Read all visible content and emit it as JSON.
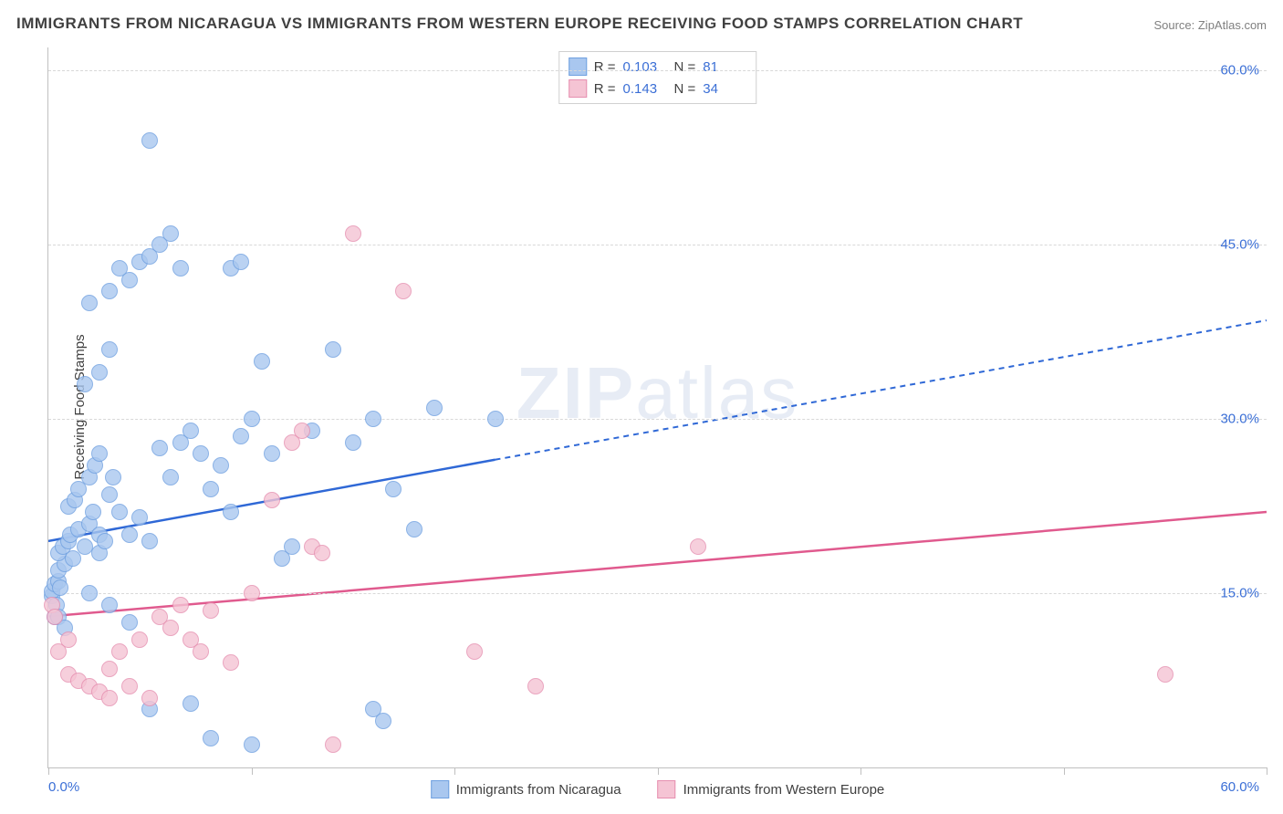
{
  "title": "IMMIGRANTS FROM NICARAGUA VS IMMIGRANTS FROM WESTERN EUROPE RECEIVING FOOD STAMPS CORRELATION CHART",
  "source": "Source: ZipAtlas.com",
  "watermark_bold": "ZIP",
  "watermark_rest": "atlas",
  "y_axis_label": "Receiving Food Stamps",
  "chart": {
    "type": "scatter",
    "xlim": [
      0,
      60
    ],
    "ylim": [
      0,
      62
    ],
    "x_min_label": "0.0%",
    "x_max_label": "60.0%",
    "y_tick_values": [
      15,
      30,
      45,
      60
    ],
    "y_tick_labels": [
      "15.0%",
      "30.0%",
      "45.0%",
      "60.0%"
    ],
    "x_tick_positions": [
      0,
      10,
      20,
      30,
      40,
      50,
      60
    ],
    "background_color": "#ffffff",
    "grid_color": "#d8d8d8",
    "marker_size": 16,
    "marker_opacity": 0.8,
    "series": [
      {
        "name": "Immigrants from Nicaragua",
        "fill": "#a9c7ef",
        "stroke": "#6fa0e0",
        "line_color": "#2f68d6",
        "R": "0.103",
        "N": "81",
        "trend": {
          "x1": 0,
          "y1": 19.5,
          "x2": 22,
          "y2": 26.5,
          "dash_x2": 60,
          "dash_y2": 38.5
        },
        "points": [
          [
            0.2,
            14.8
          ],
          [
            0.2,
            15.2
          ],
          [
            0.3,
            13.0
          ],
          [
            0.3,
            15.8
          ],
          [
            0.4,
            14.0
          ],
          [
            0.5,
            16.0
          ],
          [
            0.6,
            15.5
          ],
          [
            0.5,
            17.0
          ],
          [
            0.8,
            17.5
          ],
          [
            0.5,
            18.5
          ],
          [
            0.7,
            19.0
          ],
          [
            1.0,
            19.5
          ],
          [
            1.2,
            18.0
          ],
          [
            1.1,
            20.0
          ],
          [
            1.5,
            20.5
          ],
          [
            1.8,
            19.0
          ],
          [
            2.0,
            21.0
          ],
          [
            2.2,
            22.0
          ],
          [
            2.5,
            18.5
          ],
          [
            2.5,
            20.0
          ],
          [
            2.8,
            19.5
          ],
          [
            1.0,
            22.5
          ],
          [
            1.3,
            23.0
          ],
          [
            1.5,
            24.0
          ],
          [
            2.0,
            25.0
          ],
          [
            2.3,
            26.0
          ],
          [
            2.5,
            27.0
          ],
          [
            3.0,
            23.5
          ],
          [
            3.2,
            25.0
          ],
          [
            3.5,
            22.0
          ],
          [
            4.0,
            20.0
          ],
          [
            4.5,
            21.5
          ],
          [
            5.0,
            19.5
          ],
          [
            5.5,
            27.5
          ],
          [
            6.0,
            25.0
          ],
          [
            6.5,
            28.0
          ],
          [
            7.0,
            29.0
          ],
          [
            7.5,
            27.0
          ],
          [
            8.0,
            24.0
          ],
          [
            8.5,
            26.0
          ],
          [
            9.0,
            22.0
          ],
          [
            9.5,
            28.5
          ],
          [
            10.0,
            30.0
          ],
          [
            10.5,
            35.0
          ],
          [
            11.0,
            27.0
          ],
          [
            11.5,
            18.0
          ],
          [
            12.0,
            19.0
          ],
          [
            13.0,
            29.0
          ],
          [
            14.0,
            36.0
          ],
          [
            15.0,
            28.0
          ],
          [
            16.0,
            30.0
          ],
          [
            17.0,
            24.0
          ],
          [
            18.0,
            20.5
          ],
          [
            19.0,
            31.0
          ],
          [
            22.0,
            30.0
          ],
          [
            1.8,
            33.0
          ],
          [
            2.5,
            34.0
          ],
          [
            3.0,
            36.0
          ],
          [
            2.0,
            40.0
          ],
          [
            3.0,
            41.0
          ],
          [
            4.0,
            42.0
          ],
          [
            3.5,
            43.0
          ],
          [
            4.5,
            43.5
          ],
          [
            5.0,
            44.0
          ],
          [
            5.5,
            45.0
          ],
          [
            6.0,
            46.0
          ],
          [
            6.5,
            43.0
          ],
          [
            9.0,
            43.0
          ],
          [
            9.5,
            43.5
          ],
          [
            5.0,
            54.0
          ],
          [
            0.5,
            13.0
          ],
          [
            0.8,
            12.0
          ],
          [
            2.0,
            15.0
          ],
          [
            3.0,
            14.0
          ],
          [
            4.0,
            12.5
          ],
          [
            5.0,
            5.0
          ],
          [
            7.0,
            5.5
          ],
          [
            8.0,
            2.5
          ],
          [
            10.0,
            2.0
          ],
          [
            16.0,
            5.0
          ],
          [
            16.5,
            4.0
          ]
        ]
      },
      {
        "name": "Immigrants from Western Europe",
        "fill": "#f5c4d4",
        "stroke": "#e68fb0",
        "line_color": "#e05a8e",
        "R": "0.143",
        "N": "34",
        "trend": {
          "x1": 0,
          "y1": 13.0,
          "x2": 60,
          "y2": 22.0
        },
        "points": [
          [
            0.2,
            14.0
          ],
          [
            0.3,
            13.0
          ],
          [
            0.5,
            10.0
          ],
          [
            1.0,
            11.0
          ],
          [
            1.0,
            8.0
          ],
          [
            1.5,
            7.5
          ],
          [
            2.0,
            7.0
          ],
          [
            2.5,
            6.5
          ],
          [
            3.0,
            6.0
          ],
          [
            3.0,
            8.5
          ],
          [
            3.5,
            10.0
          ],
          [
            4.0,
            7.0
          ],
          [
            4.5,
            11.0
          ],
          [
            5.0,
            6.0
          ],
          [
            5.5,
            13.0
          ],
          [
            6.0,
            12.0
          ],
          [
            6.5,
            14.0
          ],
          [
            7.0,
            11.0
          ],
          [
            7.5,
            10.0
          ],
          [
            8.0,
            13.5
          ],
          [
            9.0,
            9.0
          ],
          [
            10.0,
            15.0
          ],
          [
            11.0,
            23.0
          ],
          [
            12.0,
            28.0
          ],
          [
            12.5,
            29.0
          ],
          [
            13.0,
            19.0
          ],
          [
            13.5,
            18.5
          ],
          [
            14.0,
            2.0
          ],
          [
            15.0,
            46.0
          ],
          [
            17.5,
            41.0
          ],
          [
            21.0,
            10.0
          ],
          [
            24.0,
            7.0
          ],
          [
            32.0,
            19.0
          ],
          [
            55.0,
            8.0
          ]
        ]
      }
    ]
  },
  "legend_top_labels": {
    "R": "R =",
    "N": "N ="
  },
  "legend_bottom": {
    "series1": "Immigrants from Nicaragua",
    "series2": "Immigrants from Western Europe"
  },
  "colors": {
    "title": "#404040",
    "source": "#808080",
    "tick_label": "#3b6fd6",
    "axis": "#c0c0c0"
  }
}
